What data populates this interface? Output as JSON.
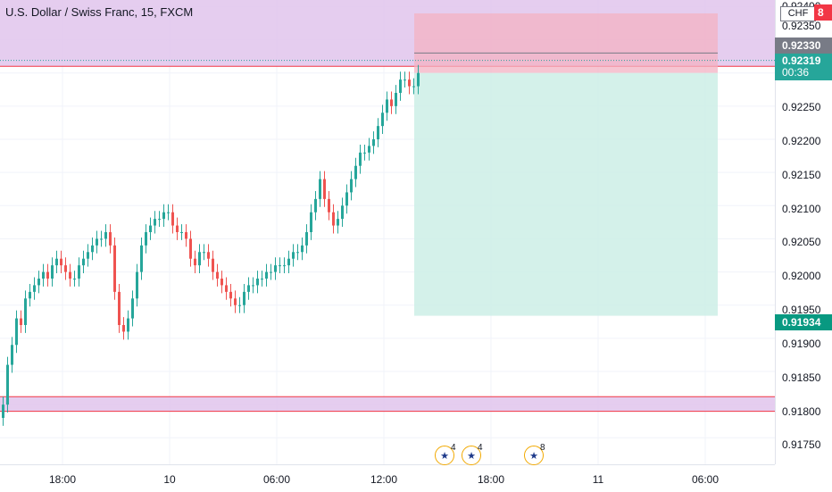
{
  "header": {
    "title": "U.S. Dollar / Swiss Franc, 15, FXCM",
    "currency_badge": "CHF"
  },
  "yaxis": {
    "labels": [
      "0.92400",
      "0.92350",
      "0.92250",
      "0.92200",
      "0.92150",
      "0.92100",
      "0.92050",
      "0.92000",
      "0.91950",
      "0.91900",
      "0.91850",
      "0.91800",
      "0.91750"
    ]
  },
  "xaxis": {
    "labels": [
      "18:00",
      "10",
      "06:00",
      "12:00",
      "18:00",
      "11",
      "06:00"
    ]
  },
  "price_tags": {
    "stop": "0.92330",
    "last": "0.92319",
    "countdown": "00:36",
    "target": "0.91934",
    "red_tag": "8"
  },
  "events": [
    {
      "count": "4"
    },
    {
      "count": "4"
    },
    {
      "count": "8"
    }
  ],
  "colors": {
    "up": "#26a69a",
    "down": "#ef5350",
    "zone_fill": "#e1c4ec",
    "zone_line": "#f23645",
    "profit_fill": "#cdeee6",
    "loss_fill": "#f3b2c3"
  },
  "chart_data": {
    "type": "candlestick",
    "title": "U.S. Dollar / Swiss Franc, 15, FXCM",
    "ylim": [
      0.9171,
      0.9241
    ],
    "close_series": [
      0.918,
      0.9186,
      0.9189,
      0.9193,
      0.9192,
      0.9196,
      0.9197,
      0.9198,
      0.9199,
      0.92,
      0.9199,
      0.9201,
      0.9202,
      0.9201,
      0.92,
      0.9199,
      0.9199,
      0.9201,
      0.9202,
      0.9203,
      0.9204,
      0.9205,
      0.9205,
      0.9206,
      0.9204,
      0.9197,
      0.9192,
      0.9191,
      0.9193,
      0.9196,
      0.92,
      0.9204,
      0.9206,
      0.9207,
      0.9208,
      0.9208,
      0.9209,
      0.9209,
      0.9207,
      0.9206,
      0.9206,
      0.9205,
      0.9202,
      0.9201,
      0.9203,
      0.9203,
      0.9202,
      0.92,
      0.9199,
      0.9198,
      0.9197,
      0.9196,
      0.9195,
      0.9195,
      0.9197,
      0.9198,
      0.9198,
      0.9199,
      0.9199,
      0.92,
      0.92,
      0.9201,
      0.9201,
      0.9201,
      0.9202,
      0.9203,
      0.9203,
      0.9204,
      0.9206,
      0.9209,
      0.9211,
      0.9214,
      0.9211,
      0.9209,
      0.9207,
      0.9208,
      0.921,
      0.9212,
      0.9214,
      0.9216,
      0.9218,
      0.9218,
      0.9219,
      0.922,
      0.9222,
      0.9224,
      0.9226,
      0.9225,
      0.9227,
      0.9229,
      0.9229,
      0.9228,
      0.9228,
      0.923
    ],
    "levels": {
      "resistance_zone": [
        0.9231,
        0.924
      ],
      "support_zone": [
        0.9179,
        0.91812
      ],
      "short_position": {
        "entry": 0.923,
        "stop": 0.9233,
        "target": 0.91934
      }
    }
  }
}
